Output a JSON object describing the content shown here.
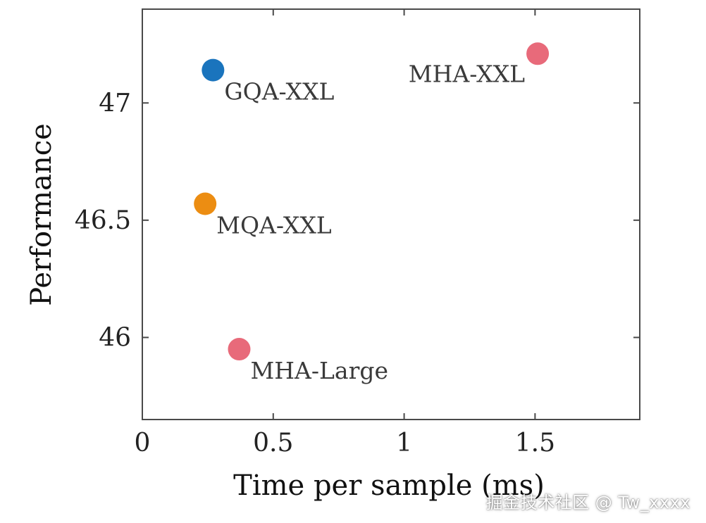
{
  "chart_data": {
    "type": "scatter",
    "title": "",
    "xlabel": "Time per sample (ms)",
    "ylabel": "Performance",
    "xlim": [
      0,
      1.9
    ],
    "ylim": [
      45.65,
      47.4
    ],
    "xticks": [
      0,
      0.5,
      1,
      1.5
    ],
    "xtick_labels": [
      "0",
      "0.5",
      "1",
      "1.5"
    ],
    "yticks": [
      46,
      46.5,
      47
    ],
    "ytick_labels": [
      "46",
      "46.5",
      "47"
    ],
    "grid": false,
    "points": [
      {
        "label": "MHA-XXL",
        "x": 1.51,
        "y": 47.21,
        "color": "#e86a7a",
        "label_side": "left"
      },
      {
        "label": "GQA-XXL",
        "x": 0.27,
        "y": 47.14,
        "color": "#1a74bd",
        "label_side": "right"
      },
      {
        "label": "MQA-XXL",
        "x": 0.24,
        "y": 46.57,
        "color": "#ec8d12",
        "label_side": "right"
      },
      {
        "label": "MHA-Large",
        "x": 0.37,
        "y": 45.95,
        "color": "#e86a7a",
        "label_side": "right"
      }
    ]
  },
  "watermark": {
    "text": "掘金技术社区 @ Tw_xxxx"
  }
}
